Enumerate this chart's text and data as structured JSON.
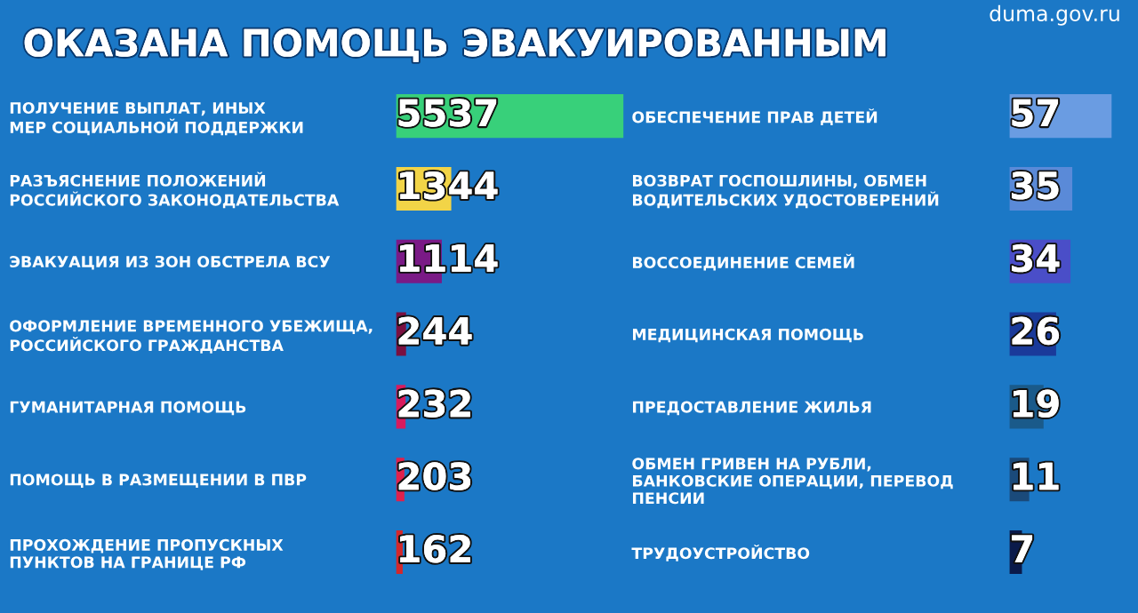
{
  "chart_data": [
    {
      "type": "bar",
      "orientation": "horizontal",
      "title": "ОКАЗАНА ПОМОЩЬ ЭВАКУИРОВАННЫМ",
      "annotations": [
        "duma.gov.ru"
      ],
      "data_labels": true,
      "tick_labels": "y",
      "categories": [
        "ПОЛУЧЕНИЕ ВЫПЛАТ, ИНЫХ\nМЕР СОЦИАЛЬНОЙ ПОДДЕРЖКИ",
        "РАЗЪЯСНЕНИЕ ПОЛОЖЕНИЙ\nРОССИЙСКОГО ЗАКОНОДАТЕЛЬСТВА",
        "ЭВАКУАЦИЯ ИЗ ЗОН ОБСТРЕЛА ВСУ",
        "ОФОРМЛЕНИЕ ВРЕМЕННОГО УБЕЖИЩА,\nРОССИЙСКОГО ГРАЖДАНСТВА",
        "ГУМАНИТАРНАЯ ПОМОЩЬ",
        "ПОМОЩЬ В РАЗМЕЩЕНИИ В ПВР",
        "ПРОХОЖДЕНИЕ ПРОПУСКНЫХ\nПУНКТОВ НА ГРАНИЦЕ РФ"
      ],
      "values": [
        5537,
        1344,
        1114,
        244,
        232,
        203,
        162
      ],
      "colors": [
        "#38d07a",
        "#f2d447",
        "#7a1a86",
        "#7a1040",
        "#d81b5e",
        "#e0214c",
        "#d2282c"
      ]
    },
    {
      "type": "bar",
      "orientation": "horizontal",
      "data_labels": true,
      "tick_labels": "y",
      "categories": [
        "ОБЕСПЕЧЕНИЕ ПРАВ ДЕТЕЙ",
        "ВОЗВРАТ ГОСПОШЛИНЫ, ОБМЕН\nВОДИТЕЛЬСКИХ УДОСТОВЕРЕНИЙ",
        "ВОССОЕДИНЕНИЕ СЕМЕЙ",
        "МЕДИЦИНСКАЯ ПОМОЩЬ",
        "ПРЕДОСТАВЛЕНИЕ ЖИЛЬЯ",
        "ОБМЕН ГРИВЕН НА РУБЛИ,\nБАНКОВСКИЕ ОПЕРАЦИИ, ПЕРЕВОД\nПЕНСИИ",
        "ТРУДОУСТРОЙСТВО"
      ],
      "values": [
        57,
        35,
        34,
        26,
        19,
        11,
        7
      ],
      "colors": [
        "#6a9ce2",
        "#5a8ad8",
        "#4a4ec8",
        "#1a3a9a",
        "#1a5a8a",
        "#1a4a7a",
        "#0a1a4a"
      ]
    }
  ]
}
